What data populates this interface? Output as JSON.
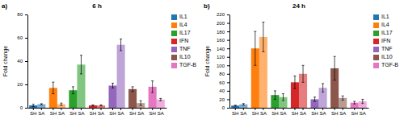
{
  "chart_data": [
    {
      "type": "bar",
      "title": "6 h",
      "y_label": "Fold change",
      "annotations": [
        "a)"
      ],
      "categories": [
        "SH",
        "SA"
      ],
      "ylim": [
        0,
        80
      ],
      "yticks": [
        0,
        20,
        40,
        60,
        80
      ],
      "legend": "right",
      "series": [
        {
          "name": "IL1",
          "values": [
            2,
            3
          ],
          "errors": [
            1.0,
            0.5
          ]
        },
        {
          "name": "IL4",
          "values": [
            17,
            3
          ],
          "errors": [
            5.0,
            1.0
          ]
        },
        {
          "name": "IL17",
          "values": [
            15,
            37
          ],
          "errors": [
            3.0,
            8.0
          ]
        },
        {
          "name": "IFN",
          "values": [
            2,
            2
          ],
          "errors": [
            0.5,
            0.5
          ]
        },
        {
          "name": "TNF",
          "values": [
            19,
            54
          ],
          "errors": [
            2.0,
            5.0
          ]
        },
        {
          "name": "IL10",
          "values": [
            16,
            4
          ],
          "errors": [
            2.0,
            2.0
          ]
        },
        {
          "name": "TGF-B",
          "values": [
            18,
            7
          ],
          "errors": [
            5.0,
            1.0
          ]
        }
      ]
    },
    {
      "type": "bar",
      "title": "24 h",
      "y_label": "Fold change",
      "annotations": [
        "b)"
      ],
      "categories": [
        "SH",
        "SA"
      ],
      "ylim": [
        0,
        220
      ],
      "yticks": [
        0,
        20,
        40,
        60,
        80,
        100,
        120,
        140,
        160,
        180,
        200,
        220
      ],
      "legend": "right",
      "series": [
        {
          "name": "IL1",
          "values": [
            5,
            8
          ],
          "errors": [
            1.0,
            2.0
          ]
        },
        {
          "name": "IL4",
          "values": [
            140,
            167
          ],
          "errors": [
            40.0,
            35.0
          ]
        },
        {
          "name": "IL17",
          "values": [
            30,
            25
          ],
          "errors": [
            10.0,
            8.0
          ]
        },
        {
          "name": "IFN",
          "values": [
            60,
            80
          ],
          "errors": [
            15.0,
            20.0
          ]
        },
        {
          "name": "TNF",
          "values": [
            20,
            47
          ],
          "errors": [
            5.0,
            10.0
          ]
        },
        {
          "name": "IL10",
          "values": [
            93,
            23
          ],
          "errors": [
            28.0,
            5.0
          ]
        },
        {
          "name": "TGF-B",
          "values": [
            12,
            15
          ],
          "errors": [
            3.0,
            5.0
          ]
        }
      ]
    }
  ]
}
